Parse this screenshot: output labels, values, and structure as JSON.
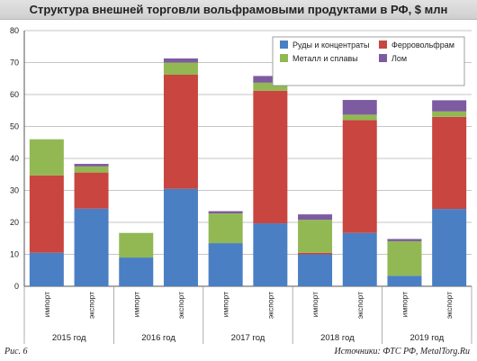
{
  "chart_data": {
    "type": "bar",
    "stacked": true,
    "title": "Структура внешней торговли вольфрамовыми продуктами в РФ, $ млн",
    "ylim": [
      0,
      80
    ],
    "yticks": [
      0,
      10,
      20,
      30,
      40,
      50,
      60,
      70,
      80
    ],
    "grid": true,
    "legend_position": "top-right",
    "groups": [
      "2015 год",
      "2016 год",
      "2017 год",
      "2018 год",
      "2019 год"
    ],
    "categories": [
      "импорт",
      "экспорт",
      "импорт",
      "экспорт",
      "импорт",
      "экспорт",
      "импорт",
      "экспорт",
      "импорт",
      "экспорт"
    ],
    "series": [
      {
        "name": "Руды и концентраты",
        "color": "#4a7fc4",
        "values": [
          10.5,
          24.3,
          9,
          30.5,
          13.5,
          19.7,
          10,
          16.7,
          3.3,
          24.2
        ]
      },
      {
        "name": "Ферровольфрам",
        "color": "#c8463f",
        "values": [
          24.2,
          11.3,
          0,
          35.7,
          0,
          41.5,
          0.5,
          35.3,
          0,
          28.8
        ]
      },
      {
        "name": "Металл и сплавы",
        "color": "#92b853",
        "values": [
          11.3,
          1.9,
          7.7,
          3.8,
          9.3,
          2.5,
          10.3,
          1.7,
          10.8,
          1.7
        ]
      },
      {
        "name": "Лом",
        "color": "#7d5ba1",
        "values": [
          0,
          0.8,
          0,
          1.3,
          0.7,
          2.1,
          1.7,
          4.6,
          0.7,
          3.5
        ]
      }
    ]
  },
  "footer": {
    "figure_label": "Рис. 6",
    "source": "Источники: ФТС РФ, MetalTorg.Ru"
  }
}
